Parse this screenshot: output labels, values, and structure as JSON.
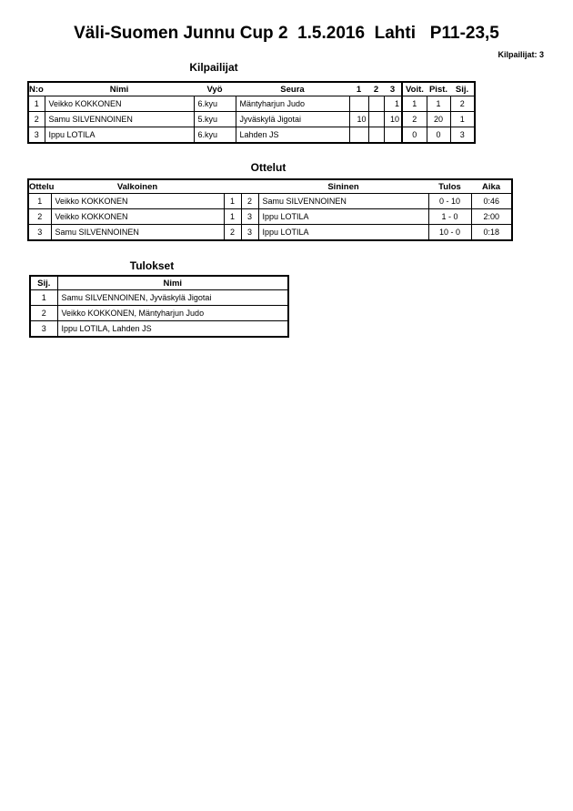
{
  "header": {
    "title": "Väli-Suomen Junnu Cup 2  1.5.2016  Lahti   P11-23,5",
    "competitors_count": "Kilpailijat: 3"
  },
  "competitors": {
    "heading": "Kilpailijat",
    "columns": [
      "N:o",
      "Nimi",
      "Vyö",
      "Seura",
      "1",
      "2",
      "3",
      "Voit.",
      "Pist.",
      "Sij."
    ],
    "rows": [
      {
        "no": "1",
        "name": "Veikko KOKKONEN",
        "belt": "6.kyu",
        "club": "Mäntyharjun Judo",
        "m1": "",
        "m2": "",
        "m3": "1",
        "wins": "1",
        "points": "1",
        "place": "2"
      },
      {
        "no": "2",
        "name": "Samu SILVENNOINEN",
        "belt": "5.kyu",
        "club": "Jyväskylä Jigotai",
        "m1": "10",
        "m2": "",
        "m3": "10",
        "wins": "2",
        "points": "20",
        "place": "1"
      },
      {
        "no": "3",
        "name": "Ippu LOTILA",
        "belt": "6.kyu",
        "club": "Lahden JS",
        "m1": "",
        "m2": "",
        "m3": "",
        "wins": "0",
        "points": "0",
        "place": "3"
      }
    ]
  },
  "matches": {
    "heading": "Ottelut",
    "columns": [
      "Ottelu",
      "Valkoinen",
      "Sininen",
      "Tulos",
      "Aika"
    ],
    "rows": [
      {
        "no": "1",
        "white": "Veikko KOKKONEN",
        "white_no": "1",
        "blue_no": "2",
        "blue": "Samu SILVENNOINEN",
        "result": "0 - 10",
        "time": "0:46"
      },
      {
        "no": "2",
        "white": "Veikko KOKKONEN",
        "white_no": "1",
        "blue_no": "3",
        "blue": "Ippu LOTILA",
        "result": "1 - 0",
        "time": "2:00"
      },
      {
        "no": "3",
        "white": "Samu SILVENNOINEN",
        "white_no": "2",
        "blue_no": "3",
        "blue": "Ippu LOTILA",
        "result": "10 - 0",
        "time": "0:18"
      }
    ]
  },
  "results": {
    "heading": "Tulokset",
    "columns": [
      "Sij.",
      "Nimi"
    ],
    "rows": [
      {
        "place": "1",
        "name": "Samu SILVENNOINEN, Jyväskylä Jigotai"
      },
      {
        "place": "2",
        "name": "Veikko KOKKONEN, Mäntyharjun Judo"
      },
      {
        "place": "3",
        "name": "Ippu LOTILA, Lahden JS"
      }
    ]
  }
}
